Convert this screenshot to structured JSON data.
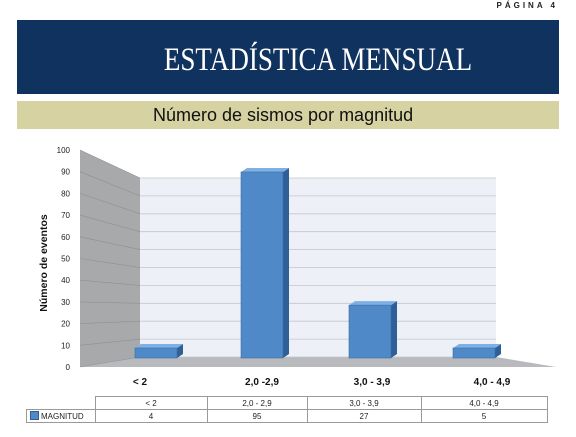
{
  "page": {
    "label": "PÁGINA 4"
  },
  "banner": {
    "title": "ESTADÍSTICA MENSUAL"
  },
  "colors": {
    "banner": "#10325f",
    "subtitle_bar": "#d6d2a2",
    "bar_front": "#4f89c8",
    "bar_side": "#2e5f96",
    "bar_top": "#7fb0e4",
    "back_wall": "#eef0f8",
    "side_wall": "#a7a9ab",
    "floor": "#b8babd"
  },
  "chart_data": {
    "type": "bar",
    "title": "Número de sismos por magnitud",
    "ylabel": "Número de eventos",
    "xlabel": "",
    "categories": [
      "< 2",
      "2,0 -2,9",
      "3,0 - 3,9",
      "4,0 - 4,9"
    ],
    "series": [
      {
        "name": "MAGNITUD",
        "values": [
          4,
          95,
          27,
          5
        ]
      }
    ],
    "ylim": [
      0,
      100
    ],
    "yticks": [
      0,
      10,
      20,
      30,
      40,
      50,
      60,
      70,
      80,
      90,
      100
    ],
    "grid": true,
    "style": "3d",
    "table": {
      "categories": [
        "< 2",
        "2,0 - 2,9",
        "3,0 - 3,9",
        "4,0 - 4,9"
      ],
      "values": [
        "4",
        "95",
        "27",
        "5"
      ]
    }
  }
}
